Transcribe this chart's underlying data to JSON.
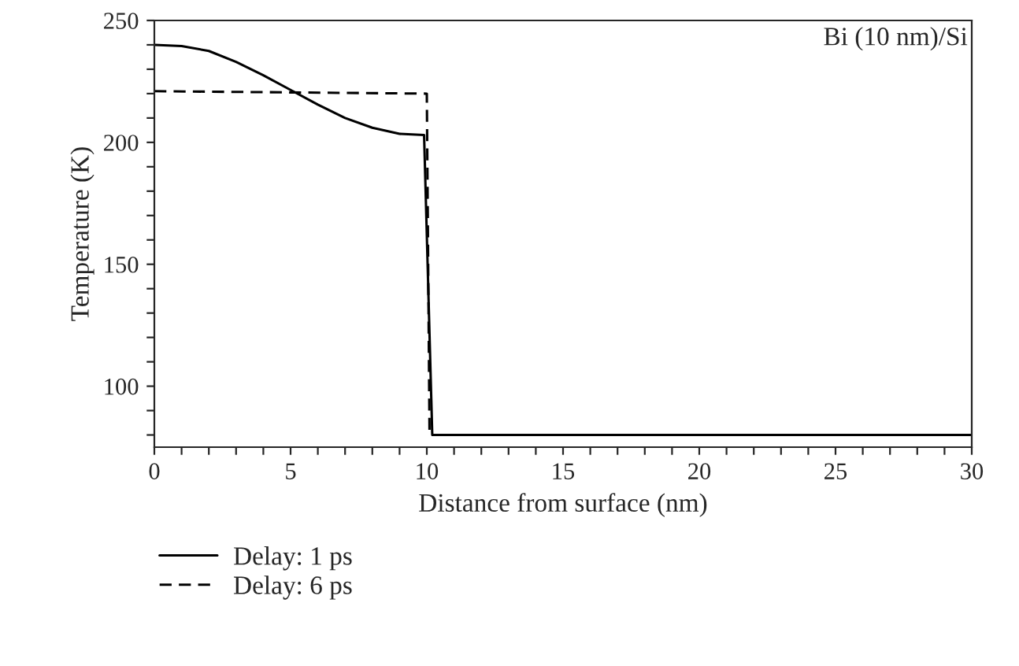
{
  "chart_data": {
    "type": "line",
    "xlabel": "Distance from surface (nm)",
    "ylabel": "Temperature (K)",
    "annotations": [
      "Bi (10 nm)/Si"
    ],
    "series": [
      {
        "name": "Delay: 1 ps",
        "color": "#000000",
        "line_style": "solid",
        "x": [
          0,
          1,
          2,
          3,
          4,
          5,
          6,
          7,
          8,
          9,
          9.9,
          10.2,
          30
        ],
        "values": [
          240,
          239.5,
          237.5,
          233,
          227.5,
          221.5,
          215.5,
          210,
          206,
          203.5,
          203,
          80,
          80
        ]
      },
      {
        "name": "Delay: 6 ps",
        "color": "#000000",
        "line_style": "dashed",
        "x": [
          0,
          10,
          10.1,
          30
        ],
        "values": [
          221,
          220,
          80,
          80
        ]
      }
    ],
    "xlim": [
      0,
      30
    ],
    "ylim": [
      75,
      250
    ],
    "xticks": [
      0,
      {
        "value": 1,
        "label": null
      },
      {
        "value": 2,
        "label": null
      },
      {
        "value": 3,
        "label": null
      },
      {
        "value": 4,
        "label": null
      },
      5,
      {
        "value": 6,
        "label": null
      },
      {
        "value": 7,
        "label": null
      },
      {
        "value": 8,
        "label": null
      },
      {
        "value": 9,
        "label": null
      },
      10,
      {
        "value": 11,
        "label": null
      },
      {
        "value": 12,
        "label": null
      },
      {
        "value": 13,
        "label": null
      },
      {
        "value": 14,
        "label": null
      },
      15,
      {
        "value": 16,
        "label": null
      },
      {
        "value": 17,
        "label": null
      },
      {
        "value": 18,
        "label": null
      },
      {
        "value": 19,
        "label": null
      },
      20,
      {
        "value": 21,
        "label": null
      },
      {
        "value": 22,
        "label": null
      },
      {
        "value": 23,
        "label": null
      },
      {
        "value": 24,
        "label": null
      },
      25,
      {
        "value": 26,
        "label": null
      },
      {
        "value": 27,
        "label": null
      },
      {
        "value": 28,
        "label": null
      },
      {
        "value": 29,
        "label": null
      },
      30
    ],
    "yticks": [
      {
        "value": 80,
        "label": null
      },
      {
        "value": 90,
        "label": null
      },
      100,
      {
        "value": 110,
        "label": null
      },
      {
        "value": 120,
        "label": null
      },
      {
        "value": 130,
        "label": null
      },
      {
        "value": 140,
        "label": null
      },
      150,
      {
        "value": 160,
        "label": null
      },
      {
        "value": 170,
        "label": null
      },
      {
        "value": 180,
        "label": null
      },
      {
        "value": 190,
        "label": null
      },
      200,
      {
        "value": 210,
        "label": null
      },
      {
        "value": 220,
        "label": null
      },
      {
        "value": 230,
        "label": null
      },
      {
        "value": 240,
        "label": null
      },
      250
    ],
    "grid": false,
    "legend": "bottom left"
  }
}
